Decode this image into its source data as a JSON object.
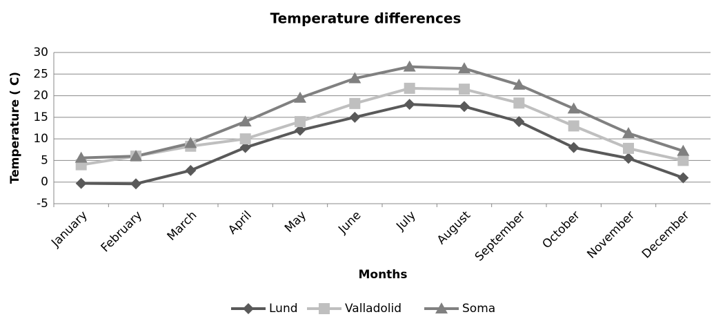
{
  "chart_data": {
    "type": "line",
    "title": "Temperature differences",
    "x_label": "Months",
    "y_label": "Temperature ( C)",
    "categories": [
      "January",
      "February",
      "March",
      "April",
      "May",
      "June",
      "July",
      "August",
      "September",
      "October",
      "November",
      "December"
    ],
    "series": [
      {
        "name": "Lund",
        "color": "#595959",
        "marker": "diamond",
        "values": [
          -0.3,
          -0.4,
          2.7,
          8,
          12,
          15,
          18,
          17.5,
          14,
          8,
          5.5,
          1
        ]
      },
      {
        "name": "Valladolid",
        "color": "#bfbfbf",
        "marker": "square",
        "values": [
          4,
          6,
          8.3,
          10,
          14,
          18.2,
          21.7,
          21.5,
          18.3,
          13,
          7.8,
          5
        ]
      },
      {
        "name": "Soma",
        "color": "#808080",
        "marker": "triangle",
        "values": [
          5.6,
          6,
          9,
          14,
          19.5,
          24,
          26.7,
          26.3,
          22.5,
          17,
          11.3,
          7.2
        ]
      }
    ],
    "ylim": [
      -5,
      30
    ],
    "yticks": [
      -5,
      0,
      5,
      10,
      15,
      20,
      25,
      30
    ],
    "grid": true,
    "legend": "bottom"
  }
}
